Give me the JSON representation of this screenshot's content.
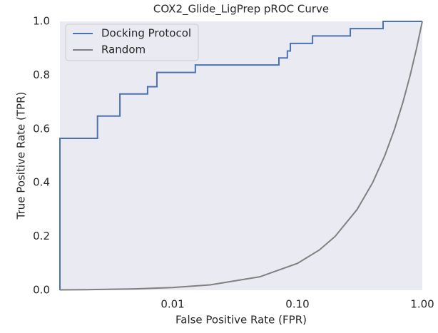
{
  "chart_data": {
    "type": "line",
    "title": "COX2_Glide_LigPrep pROC Curve",
    "x_label": "False Positive Rate (FPR)",
    "y_label": "True Positive Rate (TPR)",
    "x_scale": "log",
    "grid": false,
    "legend_position": "upper-left",
    "xlim": [
      0.00125,
      1
    ],
    "ylim": [
      0,
      1
    ],
    "xticks": [
      0.01,
      {
        "value": 0.1,
        "label": "0.10"
      },
      {
        "value": 1,
        "label": "1.00"
      }
    ],
    "yticks": [
      {
        "value": 0,
        "label": "0.0"
      },
      0.2,
      0.4,
      0.6,
      0.8,
      {
        "value": 1,
        "label": "1.0"
      }
    ],
    "series": [
      {
        "name": "Docking Protocol",
        "color": "#4c72b0",
        "x": [
          0.00125,
          0.00125,
          0.0025,
          0.0025,
          0.00378,
          0.00378,
          0.0063,
          0.0063,
          0.00748,
          0.00748,
          0.0152,
          0.0152,
          0.071,
          0.071,
          0.083,
          0.083,
          0.0877,
          0.0877,
          0.132,
          0.132,
          0.265,
          0.265,
          0.485,
          0.485,
          1
        ],
        "y": [
          0,
          0.565,
          0.565,
          0.648,
          0.648,
          0.73,
          0.73,
          0.757,
          0.757,
          0.81,
          0.81,
          0.838,
          0.838,
          0.864,
          0.864,
          0.89,
          0.89,
          0.918,
          0.918,
          0.946,
          0.946,
          0.973,
          0.973,
          1,
          1
        ]
      },
      {
        "name": "Random",
        "color": "#808080",
        "x": [
          0.00125,
          0.002,
          0.005,
          0.01,
          0.02,
          0.05,
          0.1,
          0.15,
          0.2,
          0.3,
          0.4,
          0.5,
          0.6,
          0.7,
          0.8,
          0.9,
          1
        ],
        "y": [
          0.00125,
          0.002,
          0.005,
          0.01,
          0.02,
          0.05,
          0.1,
          0.15,
          0.2,
          0.3,
          0.4,
          0.5,
          0.6,
          0.7,
          0.8,
          0.9,
          1
        ]
      }
    ]
  }
}
